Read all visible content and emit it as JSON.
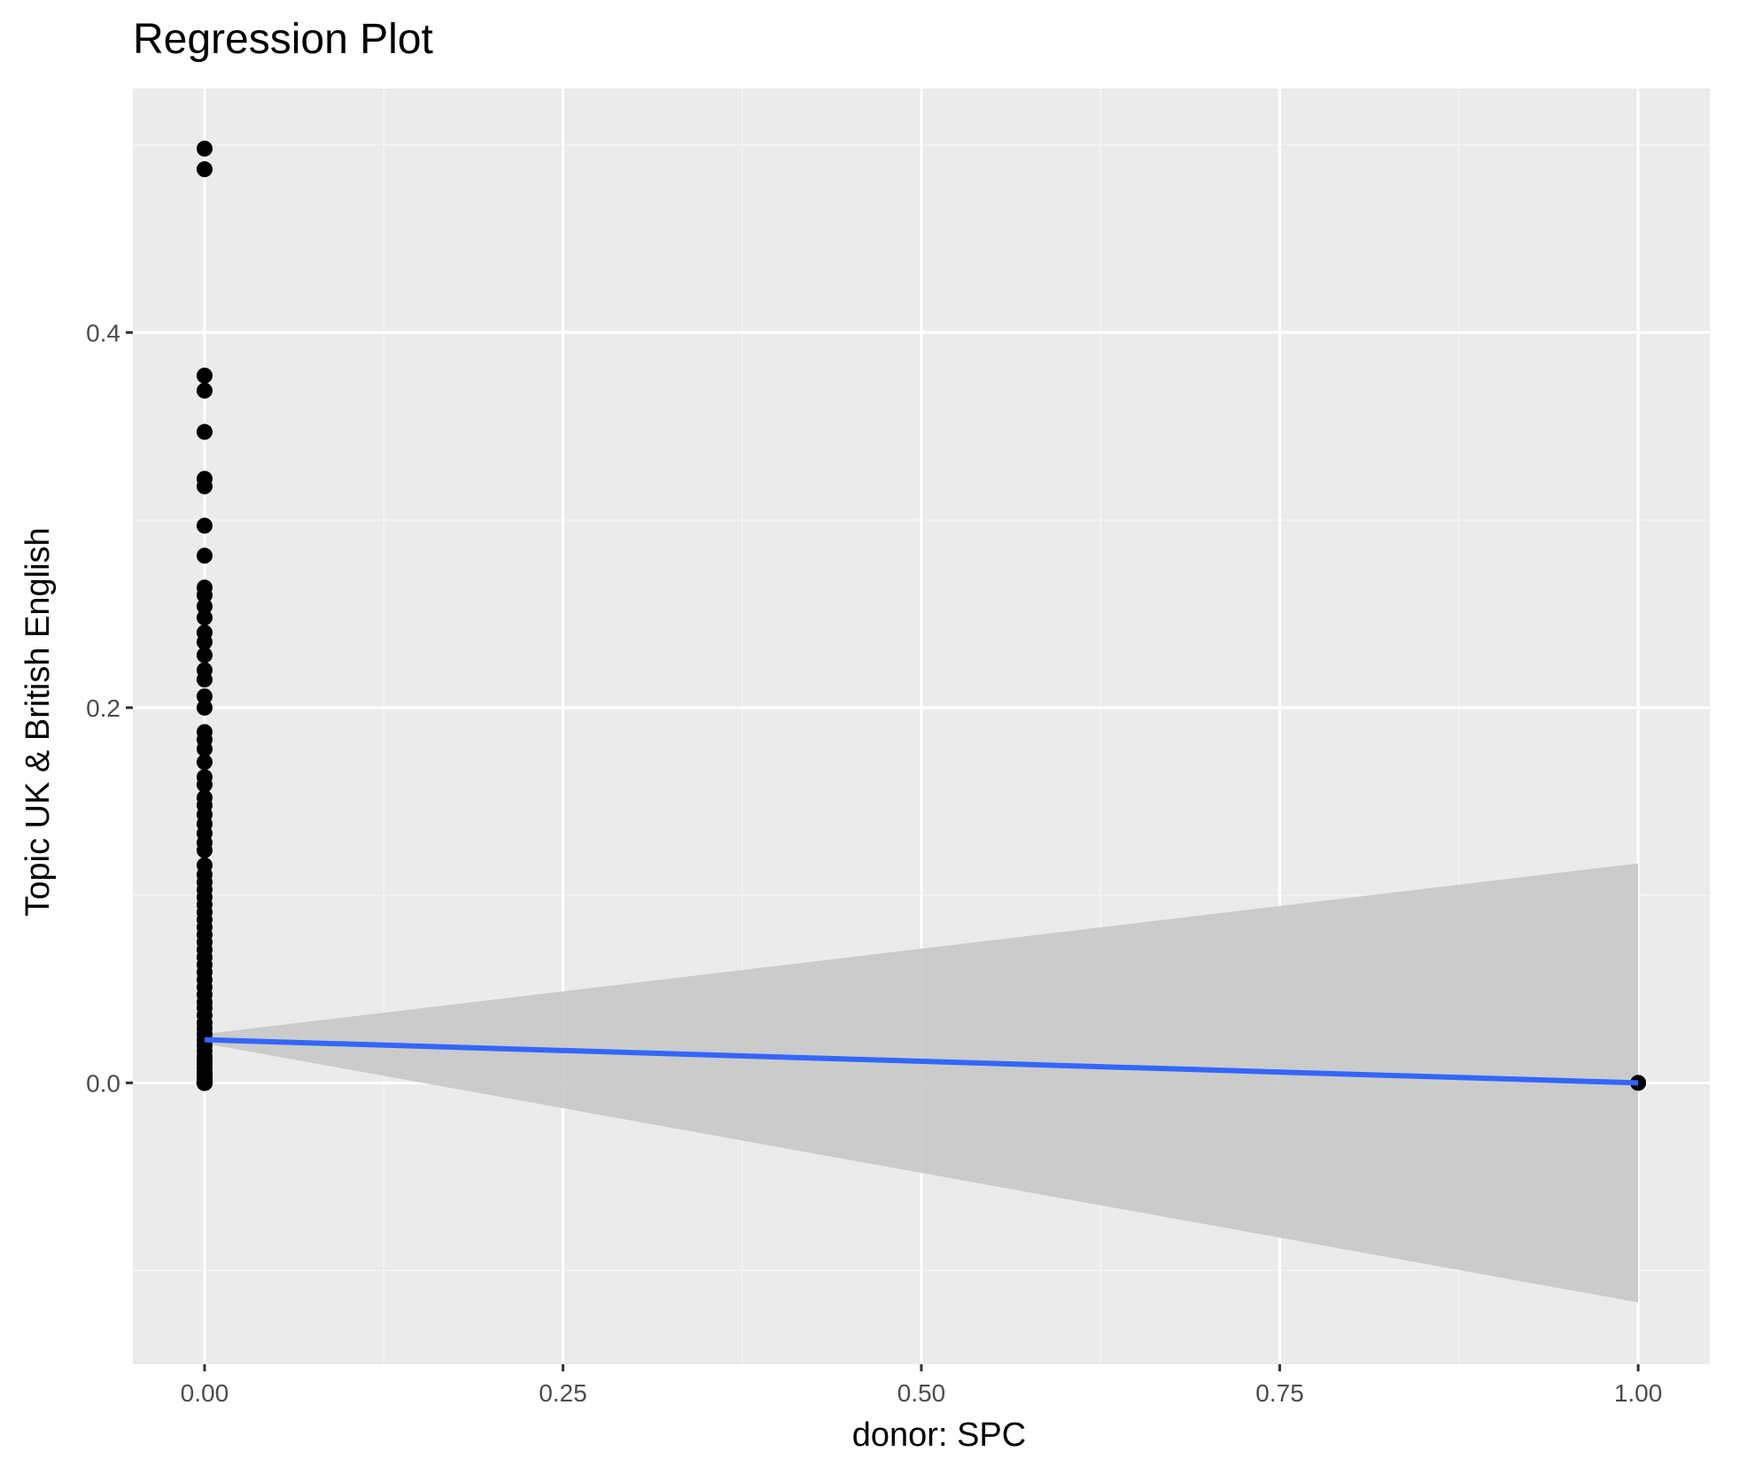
{
  "chart_data": {
    "type": "scatter",
    "title": "Regression Plot",
    "xlabel": "donor: SPC",
    "ylabel": "Topic UK & British English",
    "xlim": [
      -0.05,
      1.05
    ],
    "ylim": [
      -0.15,
      0.53
    ],
    "x_ticks": [
      0.0,
      0.25,
      0.5,
      0.75,
      1.0
    ],
    "x_tick_labels": [
      "0.00",
      "0.25",
      "0.50",
      "0.75",
      "1.00"
    ],
    "y_ticks": [
      0.0,
      0.2,
      0.4
    ],
    "y_tick_labels": [
      "0.0",
      "0.2",
      "0.4"
    ],
    "grid": true,
    "points": {
      "x": [
        0,
        0,
        0,
        0,
        0,
        0,
        0,
        0,
        0,
        0,
        0,
        0,
        0,
        0,
        0,
        0,
        0,
        0,
        0,
        0,
        0,
        0,
        0,
        0,
        0,
        0,
        0,
        0,
        0,
        0,
        0,
        0,
        0,
        0,
        0,
        0,
        0,
        0,
        0,
        0,
        0,
        0,
        0,
        0,
        0,
        0,
        0,
        0,
        0,
        0,
        0,
        0,
        0,
        0,
        0,
        0,
        0,
        0,
        0,
        0,
        0,
        0,
        0,
        0,
        0,
        0,
        0,
        0,
        0,
        0,
        0,
        0,
        0,
        0,
        0,
        0,
        0,
        0,
        0,
        0,
        0,
        0,
        0,
        0,
        0,
        0,
        0,
        0,
        0,
        0,
        0,
        0,
        0,
        0,
        0,
        0,
        0,
        0,
        0,
        0,
        0,
        0,
        0,
        0,
        1
      ],
      "y": [
        0.498,
        0.487,
        0.377,
        0.369,
        0.347,
        0.322,
        0.318,
        0.297,
        0.281,
        0.264,
        0.26,
        0.254,
        0.248,
        0.24,
        0.235,
        0.228,
        0.22,
        0.215,
        0.206,
        0.2,
        0.187,
        0.183,
        0.178,
        0.171,
        0.163,
        0.159,
        0.152,
        0.148,
        0.143,
        0.138,
        0.133,
        0.128,
        0.124,
        0.116,
        0.111,
        0.107,
        0.103,
        0.099,
        0.095,
        0.091,
        0.087,
        0.083,
        0.079,
        0.075,
        0.071,
        0.067,
        0.063,
        0.059,
        0.055,
        0.051,
        0.047,
        0.043,
        0.04,
        0.036,
        0.032,
        0.029,
        0.026,
        0.023,
        0.02,
        0.017,
        0.014,
        0.012,
        0.01,
        0.008,
        0.006,
        0.005,
        0.004,
        0.003,
        0.002,
        0.001,
        0.0,
        0.0,
        0.0,
        0.0,
        0.0,
        0.0,
        0.0,
        0.0,
        0.0,
        0.0,
        0.0,
        0.0,
        0.0,
        0.0,
        0.0,
        0.0,
        0.0,
        0.0,
        0.0,
        0.0,
        0.0,
        0.0,
        0.0,
        0.0,
        0.0,
        0.0,
        0.0,
        0.0,
        0.0,
        0.0,
        0.0,
        0.0,
        0.0,
        0.0,
        0.0
      ]
    },
    "regression_line": {
      "x": [
        0,
        1
      ],
      "y": [
        0.023,
        0.0
      ]
    },
    "confidence_band": {
      "x": [
        0,
        1
      ],
      "lower": [
        0.021,
        -0.117
      ],
      "upper": [
        0.026,
        0.117
      ]
    },
    "colors": {
      "panel_background": "#ebebeb",
      "grid_major": "#ffffff",
      "grid_minor": "#f5f5f5",
      "points": "#000000",
      "line": "#3366ff",
      "band": "#c8c8c8"
    }
  }
}
